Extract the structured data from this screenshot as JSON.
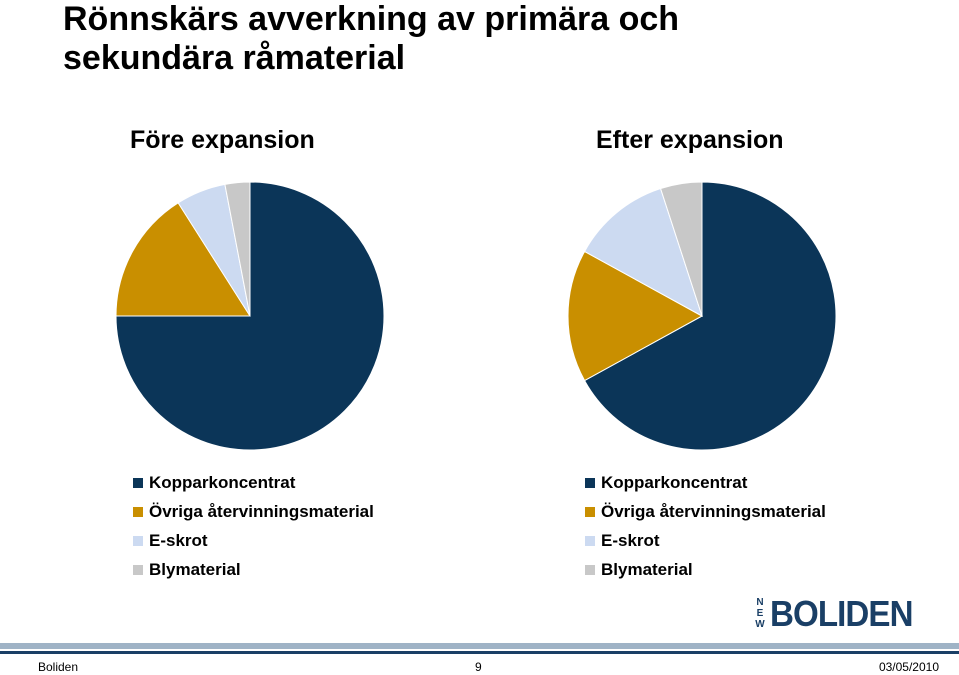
{
  "slide": {
    "title_lines": [
      "Rönnskärs avverkning av primära och",
      "sekundära råmaterial"
    ]
  },
  "colors": {
    "kopparkoncentrat": "#0b3558",
    "ovriga": "#c98f00",
    "eskrot": "#ccdaf1",
    "bly": "#c8c8c8",
    "brand": "#1a3f66"
  },
  "chart_data": [
    {
      "type": "pie",
      "title": "Före expansion",
      "categories": [
        "Kopparkoncentrat",
        "Övriga återvinningsmaterial",
        "E-skrot",
        "Blymaterial"
      ],
      "values": [
        75,
        16,
        6,
        3
      ],
      "start_angle_deg": 0,
      "direction": "clockwise",
      "legend_position": "bottom"
    },
    {
      "type": "pie",
      "title": "Efter expansion",
      "categories": [
        "Kopparkoncentrat",
        "Övriga återvinningsmaterial",
        "E-skrot",
        "Blymaterial"
      ],
      "values": [
        67,
        16,
        12,
        5
      ],
      "start_angle_deg": 0,
      "direction": "clockwise",
      "legend_position": "bottom"
    }
  ],
  "logo": {
    "prefix_letters": [
      "N",
      "E",
      "W"
    ],
    "word": "BOLIDEN"
  },
  "footer": {
    "company": "Boliden",
    "page_number": "9",
    "date": "03/05/2010"
  }
}
